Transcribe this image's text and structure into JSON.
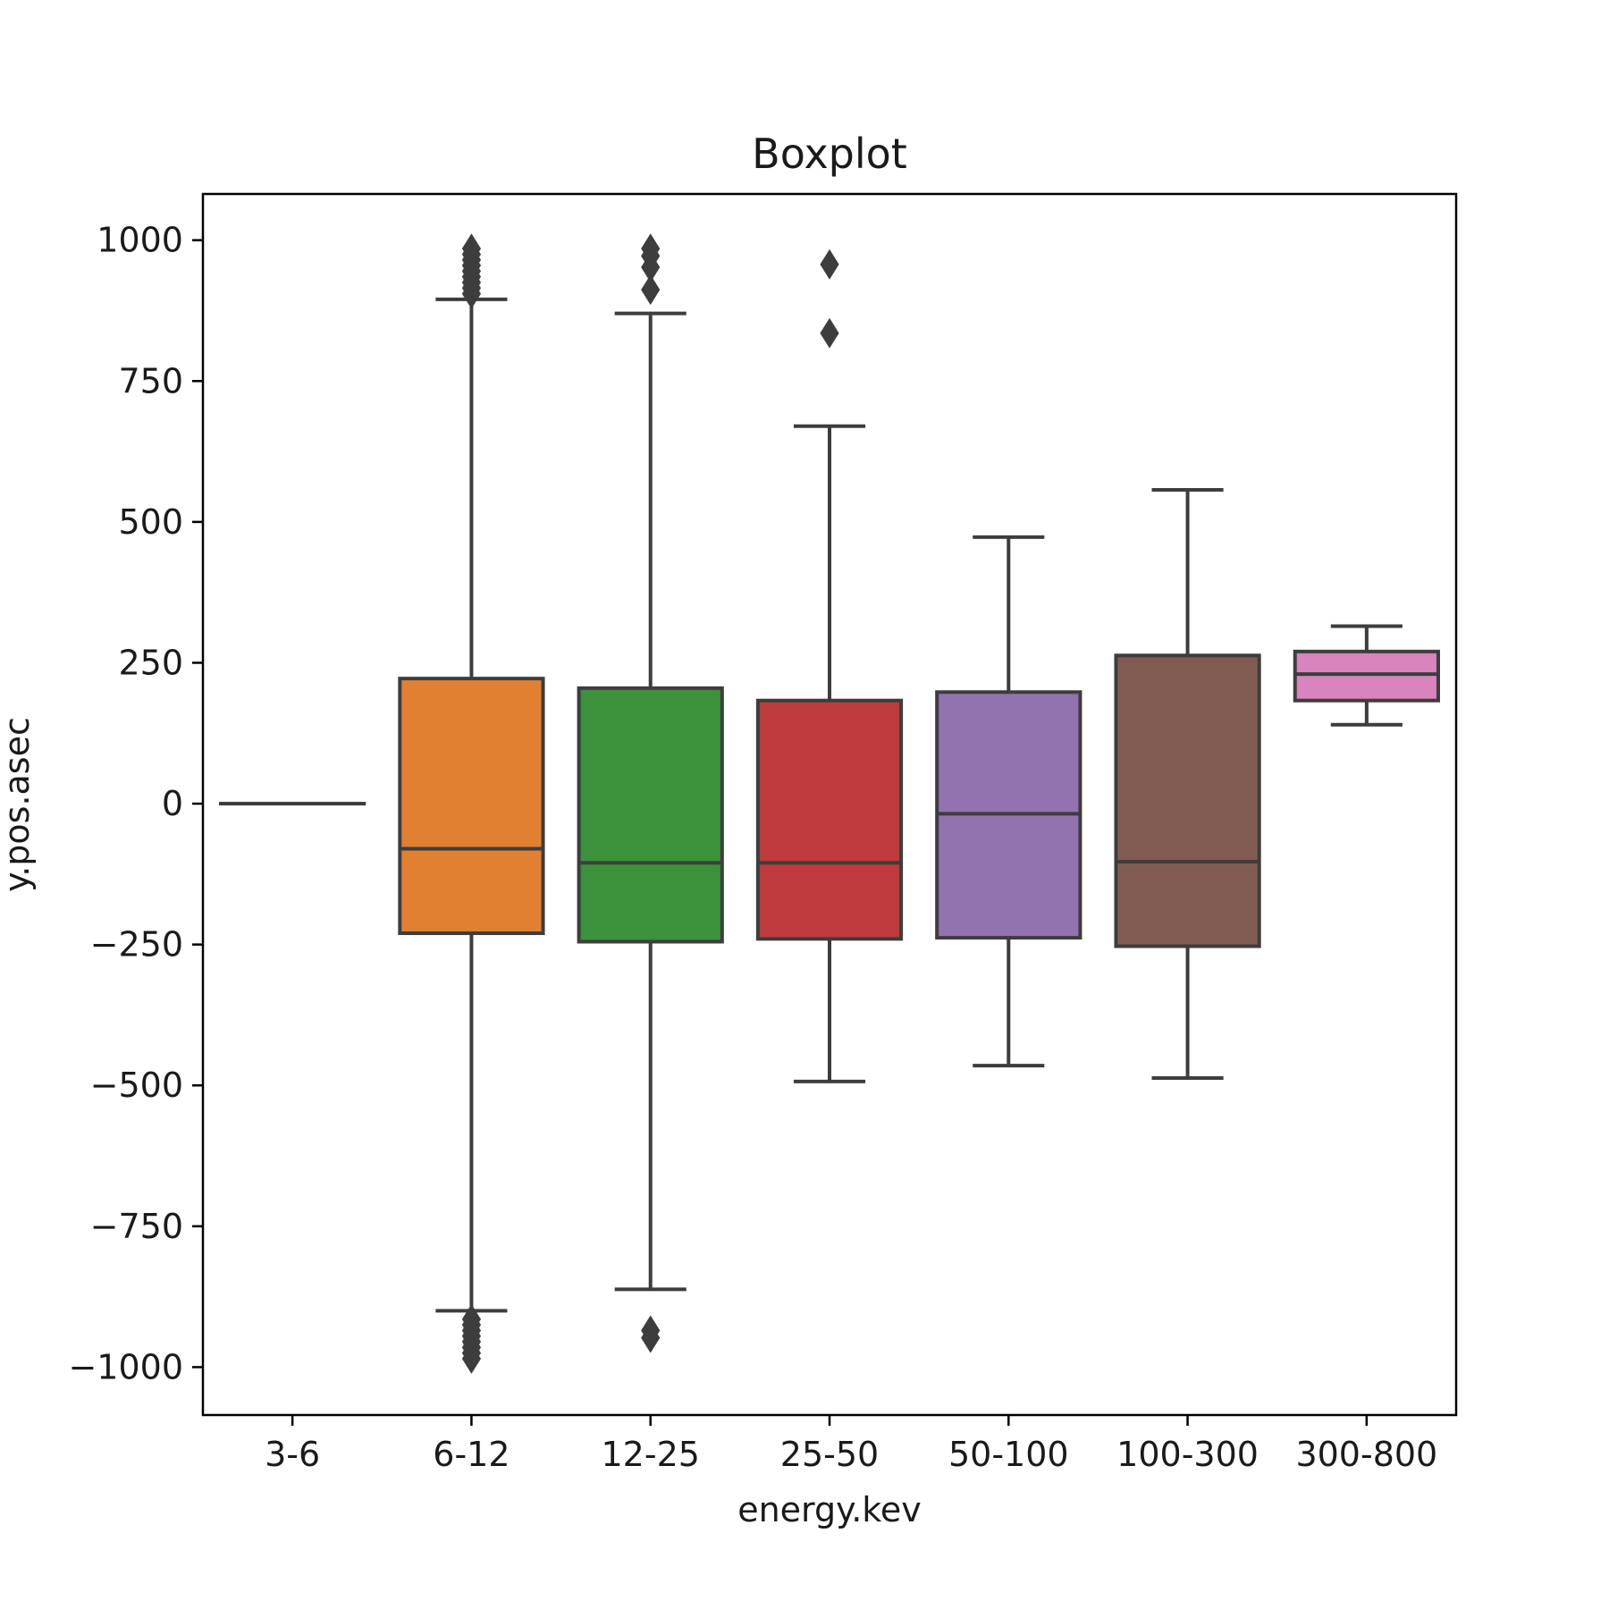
{
  "chart_data": {
    "type": "boxplot",
    "title": "Boxplot",
    "xlabel": "energy.kev",
    "ylabel": "y.pos.asec",
    "categories": [
      "3-6",
      "6-12",
      "12-25",
      "25-50",
      "50-100",
      "100-300",
      "300-800"
    ],
    "colors": [
      "#1f77b4",
      "#e08030",
      "#3b923b",
      "#c03b3d",
      "#9273b0",
      "#825c52",
      "#d884bd"
    ],
    "edge_color": "#3d3d3d",
    "ylim": [
      -1085,
      1082
    ],
    "yticks": [
      -1000,
      -750,
      -500,
      -250,
      0,
      250,
      500,
      750,
      1000
    ],
    "ytick_labels": [
      "−1000",
      "−750",
      "−500",
      "−250",
      "0",
      "250",
      "500",
      "750",
      "1000"
    ],
    "grid": false,
    "boxes": [
      {
        "label": "3-6",
        "whislo": 0,
        "q1": 0,
        "median": 0,
        "q3": 0,
        "whishi": 0,
        "fliers": []
      },
      {
        "label": "6-12",
        "whislo": -900,
        "q1": -230,
        "median": -80,
        "q3": 222,
        "whishi": 895,
        "fliers": [
          905,
          915,
          925,
          935,
          945,
          955,
          965,
          975,
          985,
          -915,
          -925,
          -935,
          -945,
          -955,
          -965,
          -975,
          -985
        ]
      },
      {
        "label": "12-25",
        "whislo": -862,
        "q1": -245,
        "median": -105,
        "q3": 205,
        "whishi": 870,
        "fliers": [
          912,
          952,
          972,
          985,
          -935,
          -948
        ]
      },
      {
        "label": "25-50",
        "whislo": -493,
        "q1": -240,
        "median": -105,
        "q3": 183,
        "whishi": 670,
        "fliers": [
          957,
          835
        ]
      },
      {
        "label": "50-100",
        "whislo": -465,
        "q1": -238,
        "median": -18,
        "q3": 198,
        "whishi": 473,
        "fliers": []
      },
      {
        "label": "100-300",
        "whislo": -487,
        "q1": -253,
        "median": -103,
        "q3": 263,
        "whishi": 557,
        "fliers": []
      },
      {
        "label": "300-800",
        "whislo": 140,
        "q1": 183,
        "median": 230,
        "q3": 270,
        "whishi": 315,
        "fliers": []
      }
    ]
  }
}
